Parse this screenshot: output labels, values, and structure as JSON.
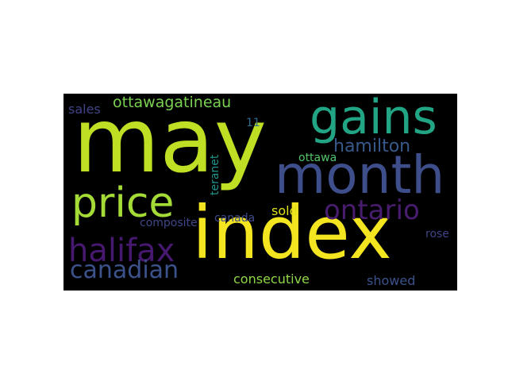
{
  "wordcloud": {
    "background": "#000000",
    "words": [
      {
        "text": "may",
        "color": "#bfdf25"
      },
      {
        "text": "index",
        "color": "#f3e51f"
      },
      {
        "text": "month",
        "color": "#3d4e8a"
      },
      {
        "text": "gains",
        "color": "#21a585"
      },
      {
        "text": "price",
        "color": "#a5db36"
      },
      {
        "text": "ontario",
        "color": "#481c6e"
      },
      {
        "text": "halifax",
        "color": "#46186f"
      },
      {
        "text": "canadian",
        "color": "#3b528b"
      },
      {
        "text": "hamilton",
        "color": "#38598c"
      },
      {
        "text": "ottawagatineau",
        "color": "#7ad151"
      },
      {
        "text": "consecutive",
        "color": "#8fd744"
      },
      {
        "text": "sold",
        "color": "#dde318"
      },
      {
        "text": "sales",
        "color": "#414487"
      },
      {
        "text": "composite",
        "color": "#3f4788"
      },
      {
        "text": "showed",
        "color": "#3b528b"
      },
      {
        "text": "rose",
        "color": "#404387"
      },
      {
        "text": "canada",
        "color": "#3e4989"
      },
      {
        "text": "ottawa",
        "color": "#52c569"
      },
      {
        "text": "11",
        "color": "#31688e"
      },
      {
        "text": "teranet",
        "color": "#1f968b"
      }
    ]
  }
}
